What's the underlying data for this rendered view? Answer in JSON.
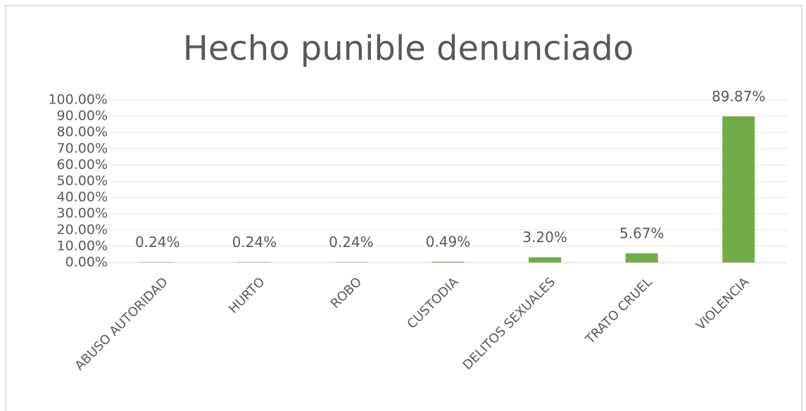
{
  "chart_data": {
    "type": "bar",
    "title": "Hecho punible denunciado",
    "categories": [
      "ABUSO AUTORIDAD",
      "HURTO",
      "ROBO",
      "CUSTODIA",
      "DELITOS SEXUALES",
      "TRATO CRUEL",
      "VIOLENCIA"
    ],
    "values": [
      0.24,
      0.24,
      0.24,
      0.49,
      3.2,
      5.67,
      89.87
    ],
    "value_labels": [
      "0.24%",
      "0.24%",
      "0.24%",
      "0.49%",
      "3.20%",
      "5.67%",
      "89.87%"
    ],
    "color": "#70ad47",
    "ylim": [
      0,
      100
    ],
    "yticks": [
      {
        "value": 0,
        "label": "0.00%"
      },
      {
        "value": 10,
        "label": "10.00%"
      },
      {
        "value": 20,
        "label": "20.00%"
      },
      {
        "value": 30,
        "label": "30.00%"
      },
      {
        "value": 40,
        "label": "40.00%"
      },
      {
        "value": 50,
        "label": "50.00%"
      },
      {
        "value": 60,
        "label": "60.00%"
      },
      {
        "value": 70,
        "label": "70.00%"
      },
      {
        "value": 80,
        "label": "80.00%"
      },
      {
        "value": 90,
        "label": "90.00%"
      },
      {
        "value": 100,
        "label": "100.00%"
      }
    ],
    "grid": true
  }
}
